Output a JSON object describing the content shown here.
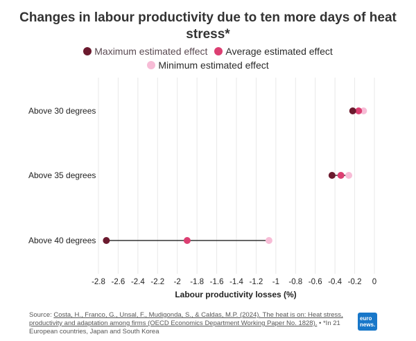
{
  "chart_data": {
    "type": "dumbbell",
    "title": "Changes in labour productivity due to ten more days of heat stress*",
    "xlabel": "Labour productivity losses (%)",
    "ylabel": "",
    "xlim": [
      -2.85,
      0.05
    ],
    "xticks": [
      -2.8,
      -2.6,
      -2.4,
      -2.2,
      -2,
      -1.8,
      -1.6,
      -1.4,
      -1.2,
      -1,
      -0.8,
      -0.6,
      -0.4,
      -0.2,
      0
    ],
    "xtick_labels": [
      "-2.8",
      "-2.6",
      "-2.4",
      "-2.2",
      "-2",
      "-1.8",
      "-1.6",
      "-1.4",
      "-1.2",
      "-1",
      "-0.8",
      "-0.6",
      "-0.4",
      "-0.2",
      "0"
    ],
    "categories": [
      "Above 30 degrees",
      "Above 35 degrees",
      "Above 40 degrees"
    ],
    "series": [
      {
        "name": "Maximum estimated effect",
        "color": "#6b1a2e",
        "values": [
          -0.22,
          -0.43,
          -2.72
        ]
      },
      {
        "name": "Average estimated effect",
        "color": "#dc3f72",
        "values": [
          -0.16,
          -0.34,
          -1.9
        ]
      },
      {
        "name": "Minimum estimated effect",
        "color": "#f7bcd6",
        "values": [
          -0.11,
          -0.26,
          -1.07
        ]
      }
    ],
    "grid": "vertical",
    "legend": "top-center"
  },
  "source": {
    "prefix": "Source: ",
    "link_text": "Costa, H., Franco, G., Unsal, F., Mudigonda, S., & Caldas, M.P. (2024). The heat is on: Heat stress, productivity and adaptation among firms (OECD Economics Department Working Paper No. 1828).",
    "suffix": " • *In 21 European countries, Japan and South Korea"
  },
  "logo": {
    "line1": "euro",
    "line2": "news."
  }
}
